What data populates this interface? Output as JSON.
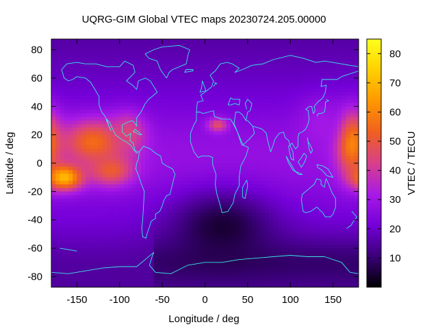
{
  "chart_data": {
    "type": "heatmap",
    "title": "UQRG-GIM Global VTEC maps 20230724.205.00000",
    "xlabel": "Longitude / deg",
    "ylabel": "Latitude / deg",
    "colorbar_label": "VTEC / TECU",
    "xlim": [
      -180,
      180
    ],
    "ylim": [
      -87.5,
      87.5
    ],
    "xticks": [
      -150,
      -100,
      -50,
      0,
      50,
      100,
      150
    ],
    "yticks": [
      -80,
      -60,
      -40,
      -20,
      0,
      20,
      40,
      60,
      80
    ],
    "colorbar_range": [
      0,
      85
    ],
    "colorbar_ticks": [
      10,
      20,
      30,
      40,
      50,
      60,
      70,
      80
    ],
    "colormap": [
      "#000000",
      "#3a0078",
      "#7400d8",
      "#a81ae6",
      "#d8408a",
      "#f06020",
      "#ff9800",
      "#ffd000",
      "#ffff20"
    ],
    "coastline_color": "#39e8e8",
    "grid": false,
    "features": [
      {
        "lon": -165,
        "lat": -10,
        "vtec": 72,
        "spread_lon": 22,
        "spread_lat": 9
      },
      {
        "lon": -130,
        "lat": 15,
        "vtec": 56,
        "spread_lon": 38,
        "spread_lat": 16
      },
      {
        "lon": -110,
        "lat": -5,
        "vtec": 52,
        "spread_lon": 26,
        "spread_lat": 11
      },
      {
        "lon": -90,
        "lat": 22,
        "vtec": 45,
        "spread_lon": 20,
        "spread_lat": 14
      },
      {
        "lon": 172,
        "lat": 15,
        "vtec": 62,
        "spread_lon": 18,
        "spread_lat": 22
      },
      {
        "lon": 15,
        "lat": 27,
        "vtec": 48,
        "spread_lon": 12,
        "spread_lat": 5
      },
      {
        "lon": 135,
        "lat": 30,
        "vtec": 32,
        "spread_lon": 25,
        "spread_lat": 18
      },
      {
        "lon": 20,
        "lat": -45,
        "vtec": 5,
        "spread_lon": 60,
        "spread_lat": 25
      }
    ]
  }
}
